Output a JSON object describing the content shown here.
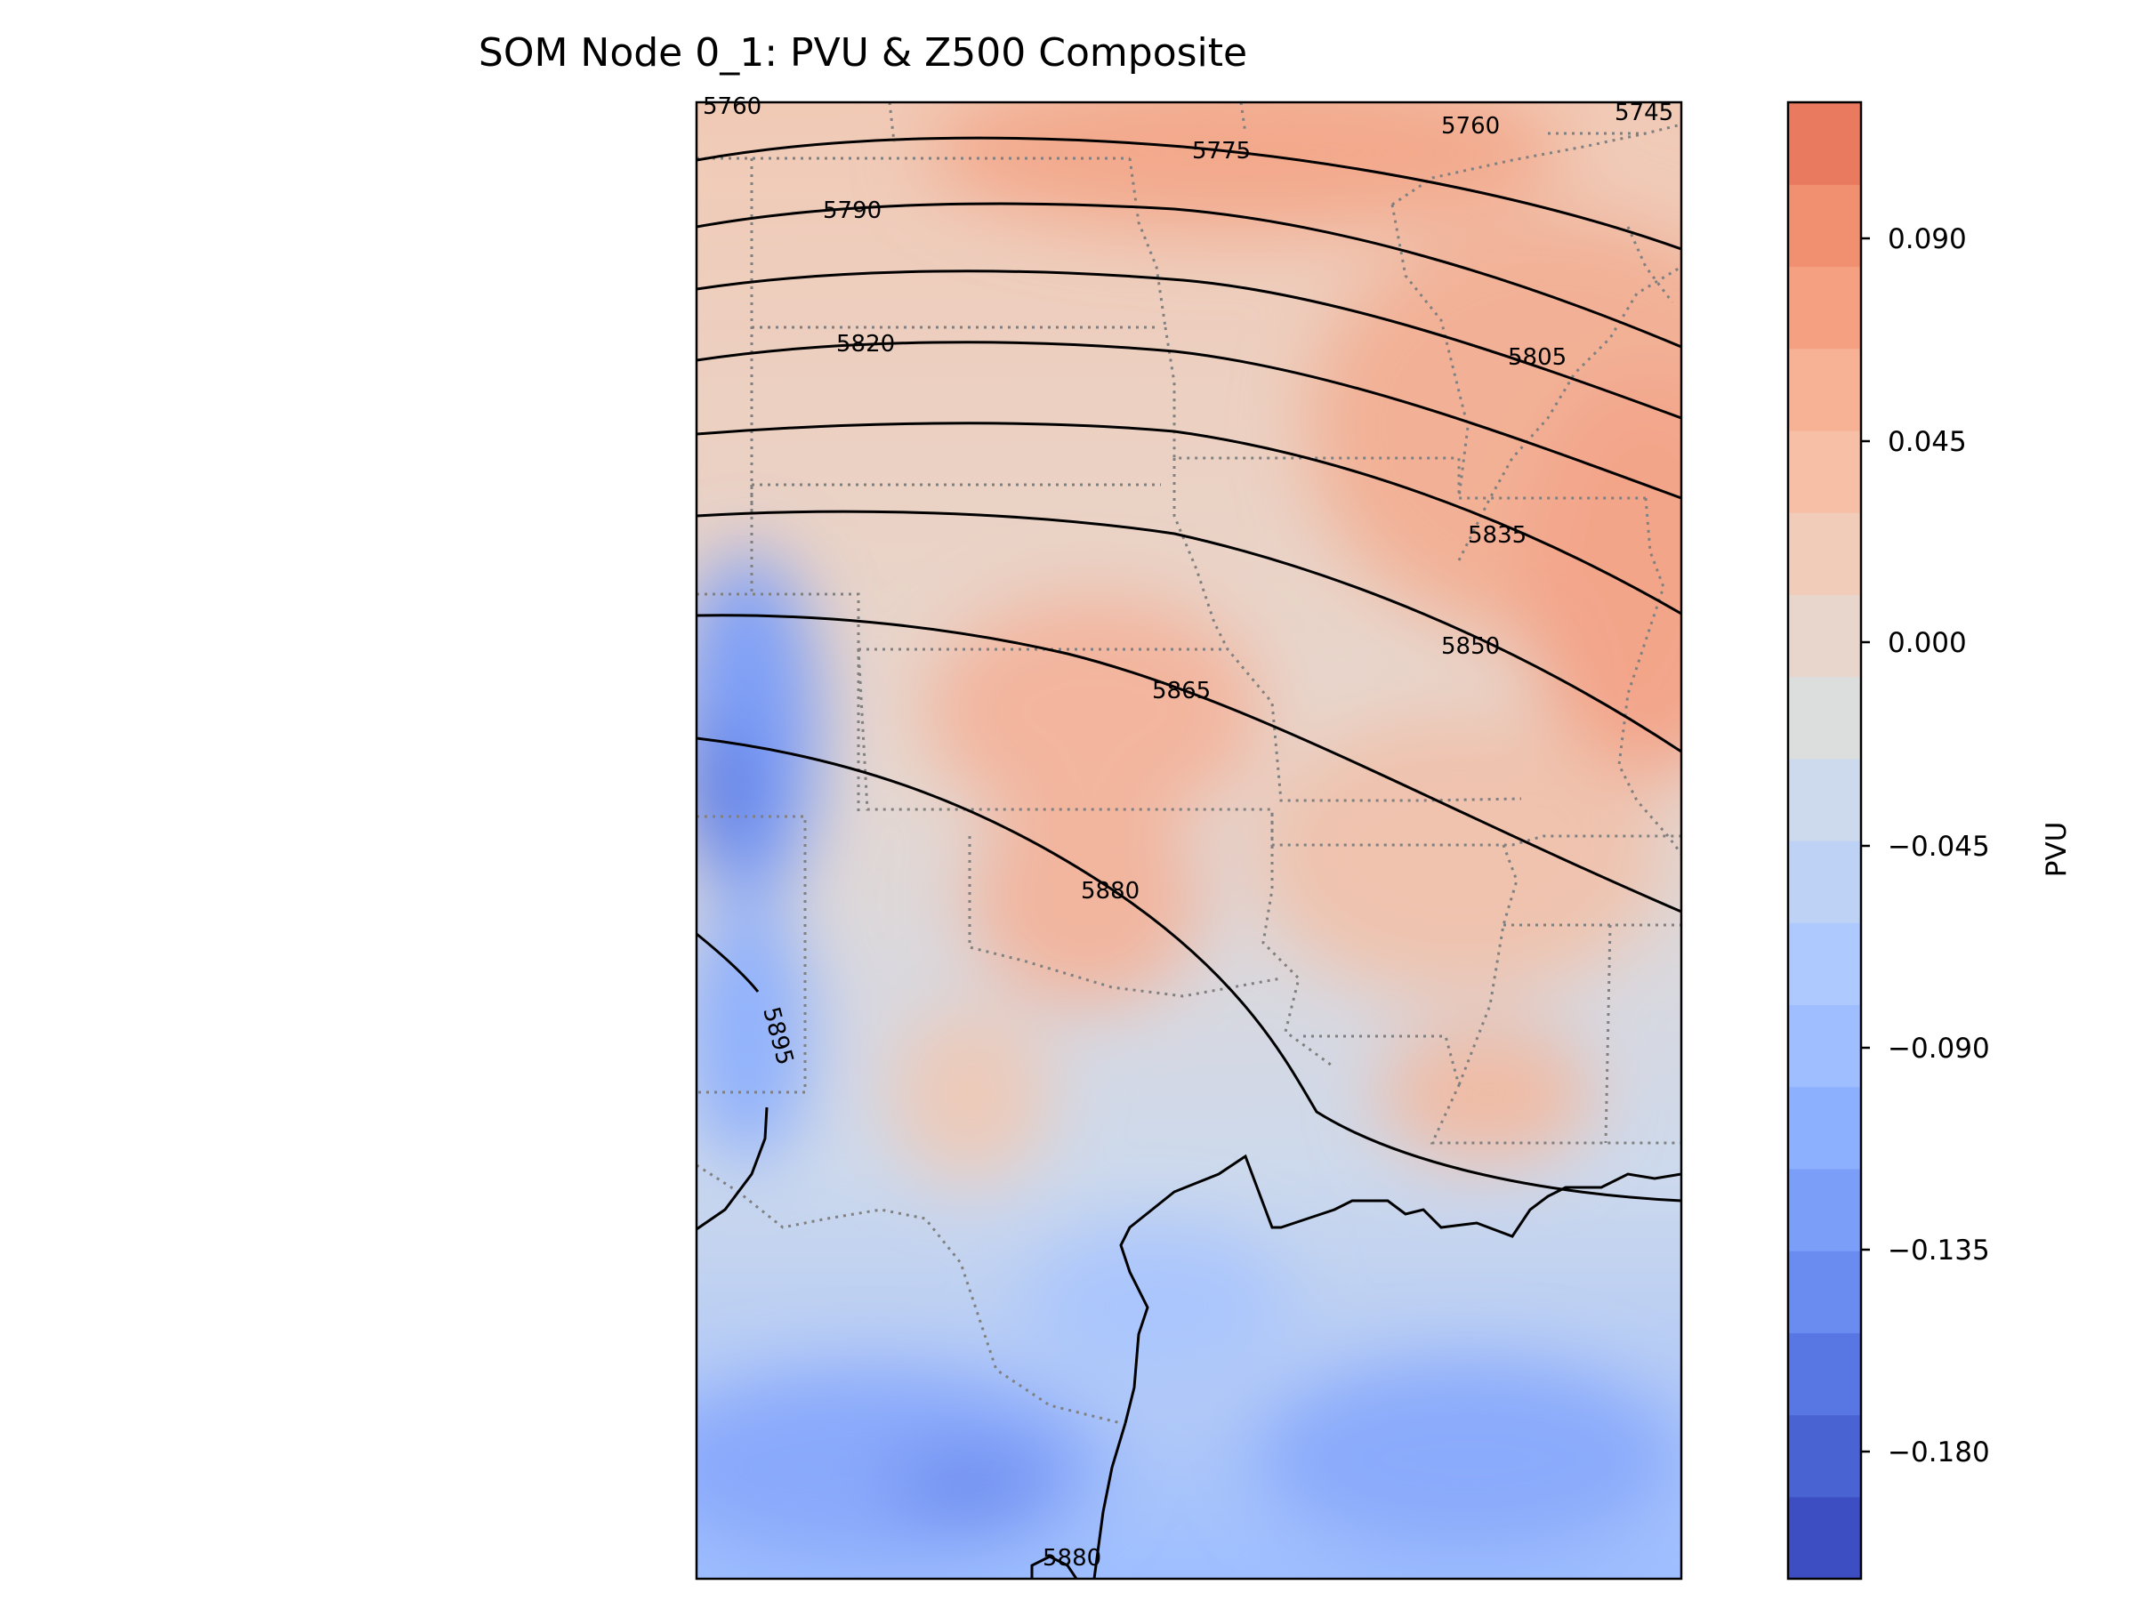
{
  "title": "SOM Node 0_1: PVU & Z500 Composite",
  "colorbar": {
    "label": "PVU",
    "ticks": [
      "0.090",
      "0.045",
      "0.000",
      "−0.045",
      "−0.090",
      "−0.135",
      "−0.180"
    ],
    "range": [
      -0.21,
      0.12
    ],
    "cmap": "coolwarm",
    "colors": [
      "#3c4ec2",
      "#4a63d3",
      "#5977e3",
      "#6a8bef",
      "#7b9ff9",
      "#8db0fe",
      "#9ebeff",
      "#aec9fd",
      "#bed2f6",
      "#cdd9ec",
      "#dcdddd",
      "#e8d6cc",
      "#f1ccb8",
      "#f6bfa6",
      "#f7b194",
      "#f5a081",
      "#f18f71",
      "#e97a5f"
    ]
  },
  "contour_labels": [
    "5760",
    "5745",
    "5775",
    "5760",
    "5790",
    "5805",
    "5820",
    "5835",
    "5850",
    "5865",
    "5880",
    "5895",
    "5880"
  ]
}
